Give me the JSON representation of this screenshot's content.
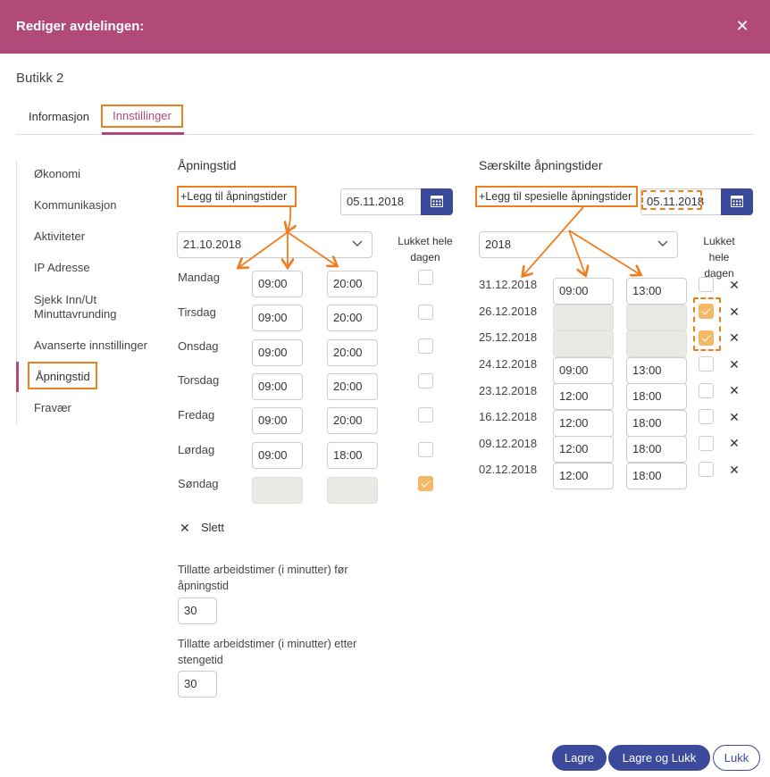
{
  "header": {
    "title": "Rediger avdelingen:",
    "close_icon": "close-icon"
  },
  "store_name": "Butikk 2",
  "tabs": [
    {
      "label": "Informasjon"
    },
    {
      "label": "Innstillinger"
    }
  ],
  "sidebar": {
    "items": [
      {
        "label": "Økonomi"
      },
      {
        "label": "Kommunikasjon"
      },
      {
        "label": "Aktiviteter"
      },
      {
        "label": "IP Adresse"
      },
      {
        "label": "Sjekk Inn/Ut Minuttavrunding"
      },
      {
        "label": "Avanserte innstillinger"
      },
      {
        "label": "Åpningstid"
      },
      {
        "label": "Fravær"
      }
    ]
  },
  "opening": {
    "title": "Åpningstid",
    "add_label": "+Legg til åpningstider",
    "date_value": "05.11.2018",
    "select_value": "21.10.2018",
    "closed_header_1": "Lukket hele",
    "closed_header_2": "dagen",
    "days": [
      {
        "label": "Mandag",
        "open": "09:00",
        "close": "20:00",
        "closed": false
      },
      {
        "label": "Tirsdag",
        "open": "09:00",
        "close": "20:00",
        "closed": false
      },
      {
        "label": "Onsdag",
        "open": "09:00",
        "close": "20:00",
        "closed": false
      },
      {
        "label": "Torsdag",
        "open": "09:00",
        "close": "20:00",
        "closed": false
      },
      {
        "label": "Fredag",
        "open": "09:00",
        "close": "20:00",
        "closed": false
      },
      {
        "label": "Lørdag",
        "open": "09:00",
        "close": "18:00",
        "closed": false
      },
      {
        "label": "Søndag",
        "open": "",
        "close": "",
        "closed": true
      }
    ],
    "delete_label": "Slett",
    "before_label": "Tillatte arbeidstimer (i minutter) før åpningstid",
    "before_value": "30",
    "after_label": "Tillatte arbeidstimer (i minutter) etter stengetid",
    "after_value": "30"
  },
  "special": {
    "title": "Særskilte åpningstider",
    "add_label": "+Legg til spesielle åpningstider",
    "date_value": "05.11.2018",
    "select_value": "2018",
    "closed_header_1": "Lukket",
    "closed_header_2": "hele",
    "closed_header_3": "dagen",
    "rows": [
      {
        "date": "31.12.2018",
        "open": "09:00",
        "close": "13:00",
        "closed": false
      },
      {
        "date": "26.12.2018",
        "open": "",
        "close": "",
        "closed": true
      },
      {
        "date": "25.12.2018",
        "open": "",
        "close": "",
        "closed": true
      },
      {
        "date": "24.12.2018",
        "open": "09:00",
        "close": "13:00",
        "closed": false
      },
      {
        "date": "23.12.2018",
        "open": "12:00",
        "close": "18:00",
        "closed": false
      },
      {
        "date": "16.12.2018",
        "open": "12:00",
        "close": "18:00",
        "closed": false
      },
      {
        "date": "09.12.2018",
        "open": "12:00",
        "close": "18:00",
        "closed": false
      },
      {
        "date": "02.12.2018",
        "open": "12:00",
        "close": "18:00",
        "closed": false
      }
    ]
  },
  "footer": {
    "save": "Lagre",
    "save_close": "Lagre og Lukk",
    "close": "Lukk"
  },
  "colors": {
    "header": "#b14a78",
    "primary": "#3c4a9c",
    "highlight": "#f07d1e",
    "checked": "#f6b865"
  }
}
